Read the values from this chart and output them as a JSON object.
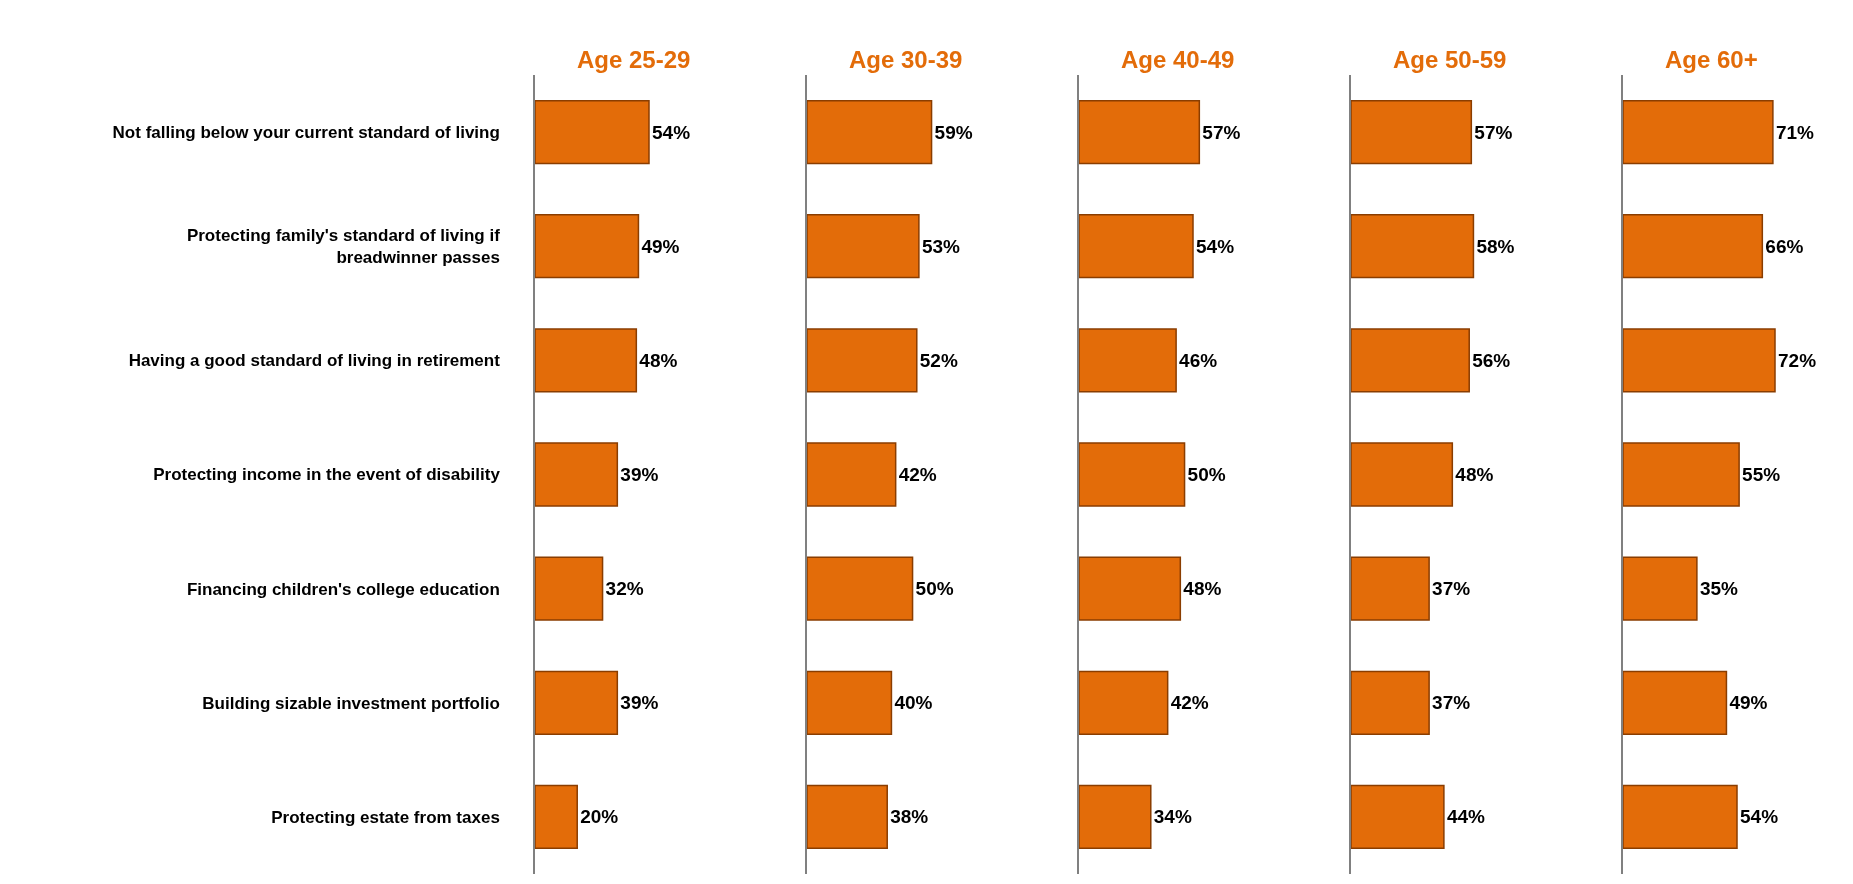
{
  "chart_data": [
    {
      "type": "bar",
      "orientation": "horizontal",
      "title": "Age 25-29",
      "categories": [
        "Not falling below your current standard of living",
        "Protecting family's standard of living if breadwinner passes",
        "Having a good standard of living in retirement",
        "Protecting income in the event of disability",
        "Financing children's college education",
        "Building sizable investment portfolio",
        "Protecting estate from taxes"
      ],
      "values": [
        54,
        49,
        48,
        39,
        32,
        39,
        20
      ],
      "value_labels": [
        "54%",
        "49%",
        "48%",
        "39%",
        "32%",
        "39%",
        "20%"
      ],
      "color": "#e36c09",
      "tick_labels": "y"
    },
    {
      "type": "bar",
      "orientation": "horizontal",
      "title": "Age 30-39",
      "categories": [
        "Not falling below your current standard of living",
        "Protecting family's standard of living if breadwinner passes",
        "Having a good standard of living in retirement",
        "Protecting income in the event of disability",
        "Financing children's college education",
        "Building sizable investment portfolio",
        "Protecting estate from taxes"
      ],
      "values": [
        59,
        53,
        52,
        42,
        50,
        40,
        38
      ],
      "value_labels": [
        "59%",
        "53%",
        "52%",
        "42%",
        "50%",
        "40%",
        "38%"
      ],
      "color": "#e36c09",
      "tick_labels": false
    },
    {
      "type": "bar",
      "orientation": "horizontal",
      "title": "Age 40-49",
      "categories": [
        "Not falling below your current standard of living",
        "Protecting family's standard of living if breadwinner passes",
        "Having a good standard of living in retirement",
        "Protecting income in the event of disability",
        "Financing children's college education",
        "Building sizable investment portfolio",
        "Protecting estate from taxes"
      ],
      "values": [
        57,
        54,
        46,
        50,
        48,
        42,
        34
      ],
      "value_labels": [
        "57%",
        "54%",
        "46%",
        "50%",
        "48%",
        "42%",
        "34%"
      ],
      "color": "#e36c09",
      "tick_labels": false
    },
    {
      "type": "bar",
      "orientation": "horizontal",
      "title": "Age 50-59",
      "categories": [
        "Not falling below your current standard of living",
        "Protecting family's standard of living if breadwinner passes",
        "Having a good standard of living in retirement",
        "Protecting income in the event of disability",
        "Financing children's college education",
        "Building sizable investment portfolio",
        "Protecting estate from taxes"
      ],
      "values": [
        57,
        58,
        56,
        48,
        37,
        37,
        44
      ],
      "value_labels": [
        "57%",
        "58%",
        "56%",
        "48%",
        "37%",
        "37%",
        "44%"
      ],
      "color": "#e36c09",
      "tick_labels": false
    },
    {
      "type": "bar",
      "orientation": "horizontal",
      "title": "Age 60+",
      "categories": [
        "Not falling below your current standard of living",
        "Protecting family's standard of living if breadwinner passes",
        "Having a good standard of living in retirement",
        "Protecting income in the event of disability",
        "Financing children's college education",
        "Building sizable investment portfolio",
        "Protecting estate from taxes"
      ],
      "values": [
        71,
        66,
        72,
        55,
        35,
        49,
        54
      ],
      "value_labels": [
        "71%",
        "66%",
        "72%",
        "55%",
        "35%",
        "49%",
        "54%"
      ],
      "color": "#e36c09",
      "tick_labels": false
    }
  ]
}
